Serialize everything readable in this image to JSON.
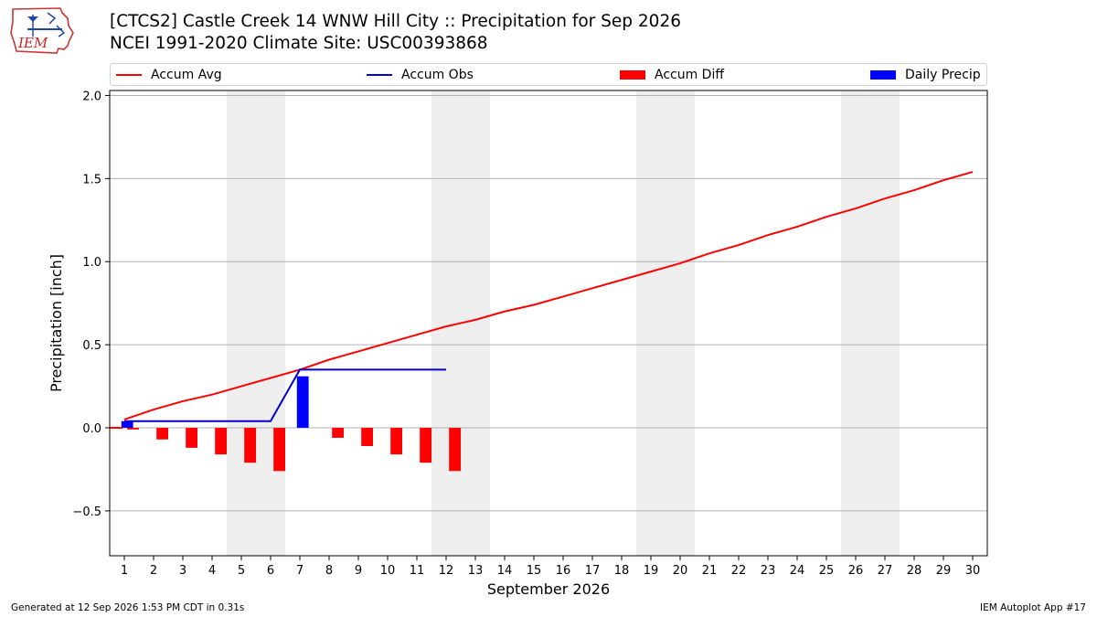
{
  "header": {
    "title_line1": "[CTCS2] Castle Creek 14 WNW Hill City :: Precipitation for Sep 2026",
    "title_line2": "NCEI 1991-2020 Climate Site: USC00393868",
    "logo_text": "IEM"
  },
  "footer": {
    "left": "Generated at 12 Sep 2026 1:53 PM CDT in 0.31s",
    "right": "IEM Autoplot App #17"
  },
  "colors": {
    "avg": "#ff0000",
    "obs": "#0000cc",
    "diff": "#ff0000",
    "daily": "#0000ff",
    "weekend": "#eeeeee",
    "grid": "#b0b0b0"
  },
  "chart_data": {
    "type": "line",
    "title": "[CTCS2] Castle Creek 14 WNW Hill City :: Precipitation for Sep 2026",
    "xlabel": "September 2026",
    "ylabel": "Precipitation [inch]",
    "xlim": [
      0.5,
      30.5
    ],
    "ylim": [
      -0.77,
      2.03
    ],
    "yticks": [
      -0.5,
      0.0,
      0.5,
      1.0,
      1.5,
      2.0
    ],
    "ytick_labels": [
      "−0.5",
      "0.0",
      "0.5",
      "1.0",
      "1.5",
      "2.0"
    ],
    "grid": "horizontal",
    "legend_placement": "top",
    "x": [
      1,
      2,
      3,
      4,
      5,
      6,
      7,
      8,
      9,
      10,
      11,
      12,
      13,
      14,
      15,
      16,
      17,
      18,
      19,
      20,
      21,
      22,
      23,
      24,
      25,
      26,
      27,
      28,
      29,
      30
    ],
    "weekend_spans": [
      [
        4.5,
        6.5
      ],
      [
        11.5,
        13.5
      ],
      [
        18.5,
        20.5
      ],
      [
        25.5,
        27.5
      ]
    ],
    "series": [
      {
        "name": "Accum Avg",
        "kind": "line",
        "x": [
          1,
          2,
          3,
          4,
          5,
          6,
          7,
          8,
          9,
          10,
          11,
          12,
          13,
          14,
          15,
          16,
          17,
          18,
          19,
          20,
          21,
          22,
          23,
          24,
          25,
          26,
          27,
          28,
          29,
          30
        ],
        "values": [
          0.05,
          0.11,
          0.16,
          0.2,
          0.25,
          0.3,
          0.35,
          0.41,
          0.46,
          0.51,
          0.56,
          0.61,
          0.65,
          0.7,
          0.74,
          0.79,
          0.84,
          0.89,
          0.94,
          0.99,
          1.05,
          1.1,
          1.16,
          1.21,
          1.27,
          1.32,
          1.38,
          1.43,
          1.49,
          1.54
        ]
      },
      {
        "name": "Accum Obs",
        "kind": "line",
        "x": [
          1,
          2,
          3,
          4,
          5,
          6,
          7,
          8,
          9,
          10,
          11,
          12
        ],
        "values": [
          0.04,
          0.04,
          0.04,
          0.04,
          0.04,
          0.04,
          0.35,
          0.35,
          0.35,
          0.35,
          0.35,
          0.35
        ]
      },
      {
        "name": "Accum Diff",
        "kind": "bar",
        "x": [
          1,
          2,
          3,
          4,
          5,
          6,
          7,
          8,
          9,
          10,
          11,
          12
        ],
        "values": [
          -0.01,
          -0.07,
          -0.12,
          -0.16,
          -0.21,
          -0.26,
          0.0,
          -0.06,
          -0.11,
          -0.16,
          -0.21,
          -0.26
        ]
      },
      {
        "name": "Daily Precip",
        "kind": "bar",
        "x": [
          1,
          7
        ],
        "values": [
          0.04,
          0.31
        ]
      }
    ]
  }
}
